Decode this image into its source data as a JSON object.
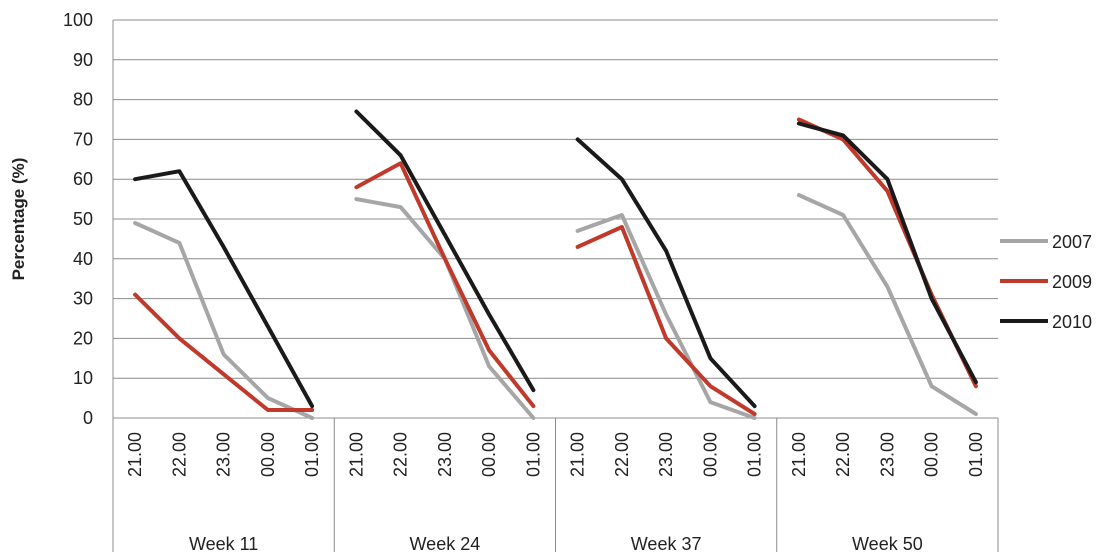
{
  "chart_data": {
    "type": "line",
    "ylabel": "Percentage (%)",
    "ylim": [
      0,
      100
    ],
    "y_ticks": [
      0,
      10,
      20,
      30,
      40,
      50,
      60,
      70,
      80,
      90,
      100
    ],
    "grid": true,
    "legend_position": "right",
    "groups": [
      {
        "label": "Week 11",
        "times": [
          "21.00",
          "22.00",
          "23.00",
          "00.00",
          "01.00"
        ]
      },
      {
        "label": "Week 24",
        "times": [
          "21.00",
          "22.00",
          "23.00",
          "00.00",
          "01.00"
        ]
      },
      {
        "label": "Week 37",
        "times": [
          "21.00",
          "22.00",
          "23.00",
          "00.00",
          "01.00"
        ]
      },
      {
        "label": "Week 50",
        "times": [
          "21.00",
          "22.00",
          "23.00",
          "00.00",
          "01.00"
        ]
      }
    ],
    "series": [
      {
        "name": "2007",
        "color": "#a6a6a6",
        "values": [
          [
            49,
            44,
            16,
            5,
            0
          ],
          [
            55,
            53,
            40,
            13,
            0
          ],
          [
            47,
            51,
            26,
            4,
            0
          ],
          [
            56,
            51,
            33,
            8,
            1
          ]
        ]
      },
      {
        "name": "2009",
        "color": "#c0392b",
        "values": [
          [
            31,
            20,
            11,
            2,
            2
          ],
          [
            58,
            64,
            40,
            17,
            3
          ],
          [
            43,
            48,
            20,
            8,
            1
          ],
          [
            75,
            70,
            57,
            31,
            8
          ]
        ]
      },
      {
        "name": "2010",
        "color": "#1a1a1a",
        "values": [
          [
            60,
            62,
            43,
            23,
            3
          ],
          [
            77,
            66,
            46,
            26,
            7
          ],
          [
            70,
            60,
            42,
            15,
            3
          ],
          [
            74,
            71,
            60,
            30,
            9
          ]
        ]
      }
    ]
  }
}
